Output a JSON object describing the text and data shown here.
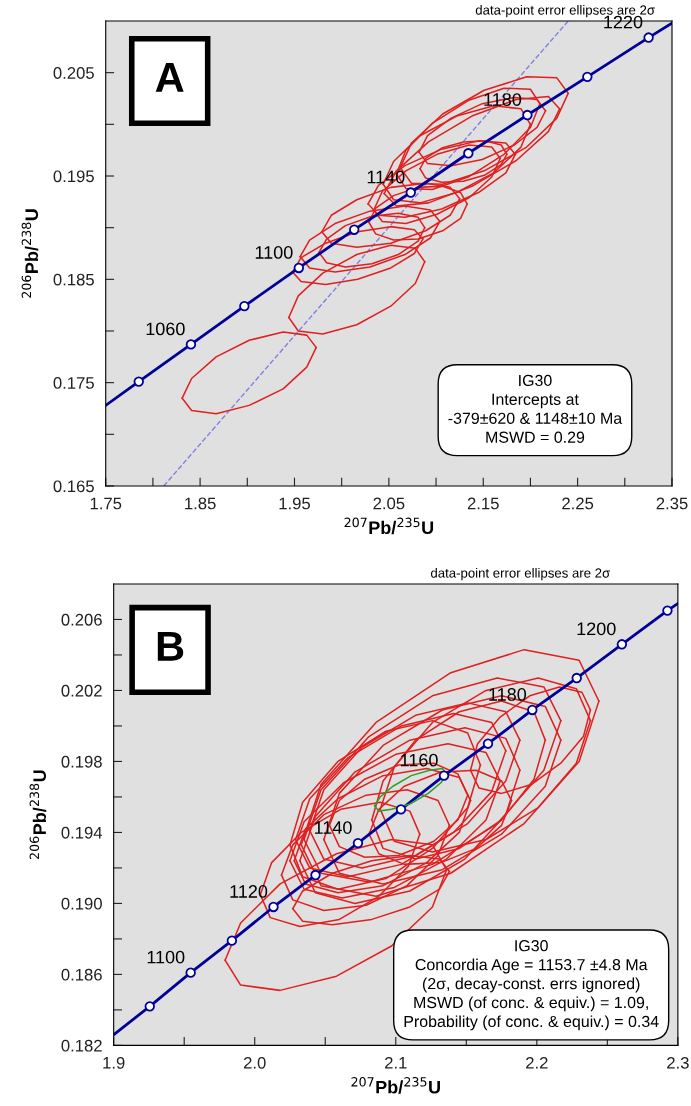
{
  "chart_data": [
    {
      "type": "line",
      "xlabel": "$^{207}$Pb/$^{235}$U",
      "ylabel": "$^{206}$Pb/$^{238}$U",
      "xlim": [
        1.75,
        2.35
      ],
      "ylim": [
        0.165,
        0.21
      ],
      "xticks": [
        1.75,
        {
          "value": 1.8,
          "label": null
        },
        1.85,
        {
          "value": 1.9,
          "label": null
        },
        1.95,
        {
          "value": 2.0,
          "label": null
        },
        2.05,
        {
          "value": 2.1,
          "label": null
        },
        2.15,
        {
          "value": 2.2,
          "label": null
        },
        2.25,
        {
          "value": 2.3,
          "label": null
        },
        2.35
      ],
      "yticks": [
        0.165,
        {
          "value": 0.17,
          "label": null
        },
        0.175,
        {
          "value": 0.18,
          "label": null
        },
        0.185,
        {
          "value": 0.19,
          "label": null
        },
        0.195,
        {
          "value": 0.2,
          "label": null
        },
        0.205
      ],
      "annotations": [
        "A",
        "data-point error ellipses are 2σ",
        "IG30\nIntercepts at\n-379±620 & 1148±10 Ma\nMSWD = 0.29",
        {
          "text": "1060",
          "x": 1.8403,
          "y": 0.1787
        },
        {
          "text": "1100",
          "x": 1.9546,
          "y": 0.1861
        },
        {
          "text": "1140",
          "x": 2.0732,
          "y": 0.1934
        },
        {
          "text": "1180",
          "x": 2.1968,
          "y": 0.2009
        },
        {
          "text": "1220",
          "x": 2.3252,
          "y": 0.2084
        }
      ],
      "series": [
        {
          "type": "line",
          "color": "#8080e0",
          "line_style": "dashed",
          "x": [
            1.8115,
            2.24
          ],
          "values": [
            0.165,
            0.21
          ]
        },
        {
          "type": "line",
          "color": "#e02020",
          "x": [
            1.831,
            1.841,
            1.867,
            1.902,
            1.938,
            1.963,
            1.973
          ],
          "values": [
            0.1735,
            0.1754,
            0.1775,
            0.1791,
            0.1799,
            0.1796,
            0.1784
          ]
        },
        {
          "type": "line",
          "color": "#e02020",
          "x": [
            1.831,
            1.841,
            1.867,
            1.902,
            1.938,
            1.963,
            1.973
          ],
          "values": [
            0.1735,
            0.1723,
            0.172,
            0.1728,
            0.1744,
            0.1765,
            0.1784
          ]
        },
        {
          "type": "line",
          "color": "#e02020",
          "x": [
            1.944,
            1.954,
            1.98,
            2.016,
            2.052,
            2.078,
            2.088
          ],
          "values": [
            0.1813,
            0.1834,
            0.1856,
            0.1874,
            0.1883,
            0.188,
            0.1867
          ]
        },
        {
          "type": "line",
          "color": "#e02020",
          "x": [
            1.944,
            1.954,
            1.98,
            2.016,
            2.052,
            2.078,
            2.088
          ],
          "values": [
            0.1813,
            0.18,
            0.1797,
            0.1806,
            0.1824,
            0.1846,
            0.1867
          ]
        },
        {
          "type": "line",
          "color": "#e02020",
          "x": [
            1.948,
            1.957,
            1.983,
            2.017,
            2.052,
            2.077,
            2.086
          ],
          "values": [
            0.1857,
            0.1871,
            0.1885,
            0.1896,
            0.1901,
            0.1898,
            0.1889
          ]
        },
        {
          "type": "line",
          "color": "#e02020",
          "x": [
            1.948,
            1.957,
            1.983,
            2.017,
            2.052,
            2.077,
            2.086
          ],
          "values": [
            0.1857,
            0.1848,
            0.1845,
            0.185,
            0.1861,
            0.1875,
            0.1889
          ]
        },
        {
          "type": "line",
          "color": "#e02020",
          "x": [
            1.976,
            1.984,
            2.004,
            2.032,
            2.06,
            2.081,
            2.088
          ],
          "values": [
            0.1876,
            0.1889,
            0.1902,
            0.1911,
            0.1914,
            0.191,
            0.19
          ]
        },
        {
          "type": "line",
          "color": "#e02020",
          "x": [
            1.976,
            1.984,
            2.004,
            2.032,
            2.06,
            2.081,
            2.088
          ],
          "values": [
            0.1876,
            0.1866,
            0.1862,
            0.1865,
            0.1874,
            0.1887,
            0.19
          ]
        },
        {
          "type": "line",
          "color": "#e02020",
          "x": [
            1.956,
            1.966,
            1.993,
            2.03,
            2.067,
            2.094,
            2.104
          ],
          "values": [
            0.1872,
            0.1888,
            0.1904,
            0.1916,
            0.1921,
            0.1917,
            0.1906
          ]
        },
        {
          "type": "line",
          "color": "#e02020",
          "x": [
            1.956,
            1.966,
            1.993,
            2.03,
            2.067,
            2.094,
            2.104
          ],
          "values": [
            0.1872,
            0.1861,
            0.1857,
            0.1862,
            0.1874,
            0.189,
            0.1906
          ]
        },
        {
          "type": "line",
          "color": "#e02020",
          "x": [
            1.979,
            1.989,
            2.016,
            2.052,
            2.089,
            2.115,
            2.125
          ],
          "values": [
            0.1896,
            0.1912,
            0.1927,
            0.1939,
            0.1943,
            0.1939,
            0.1928
          ]
        },
        {
          "type": "line",
          "color": "#e02020",
          "x": [
            1.979,
            1.989,
            2.016,
            2.052,
            2.089,
            2.115,
            2.125
          ],
          "values": [
            0.1896,
            0.1885,
            0.1881,
            0.1885,
            0.1897,
            0.1912,
            0.1928
          ]
        },
        {
          "type": "line",
          "color": "#e02020",
          "x": [
            2.029,
            2.036,
            2.055,
            2.081,
            2.107,
            2.126,
            2.133
          ],
          "values": [
            0.1905,
            0.1919,
            0.1931,
            0.1939,
            0.194,
            0.1934,
            0.1923
          ]
        },
        {
          "type": "line",
          "color": "#e02020",
          "x": [
            2.029,
            2.036,
            2.055,
            2.081,
            2.107,
            2.126,
            2.133
          ],
          "values": [
            0.1905,
            0.1894,
            0.1888,
            0.1889,
            0.1897,
            0.1909,
            0.1923
          ]
        },
        {
          "type": "line",
          "color": "#e02020",
          "x": [
            2.028,
            2.039,
            2.067,
            2.106,
            2.145,
            2.174,
            2.184
          ],
          "values": [
            0.1923,
            0.1941,
            0.196,
            0.1976,
            0.1984,
            0.1982,
            0.1971
          ]
        },
        {
          "type": "line",
          "color": "#e02020",
          "x": [
            2.028,
            2.039,
            2.067,
            2.106,
            2.145,
            2.174,
            2.184
          ],
          "values": [
            0.1923,
            0.1912,
            0.191,
            0.1918,
            0.1934,
            0.1953,
            0.1971
          ]
        },
        {
          "type": "line",
          "color": "#e02020",
          "x": [
            2.044,
            2.055,
            2.083,
            2.122,
            2.161,
            2.19,
            2.2
          ],
          "values": [
            0.1942,
            0.1964,
            0.1989,
            0.2008,
            0.2018,
            0.2015,
            0.2
          ]
        },
        {
          "type": "line",
          "color": "#e02020",
          "x": [
            2.044,
            2.055,
            2.083,
            2.122,
            2.161,
            2.19,
            2.2
          ],
          "values": [
            0.1942,
            0.1927,
            0.1924,
            0.1934,
            0.1953,
            0.1978,
            0.2
          ]
        },
        {
          "type": "line",
          "color": "#e02020",
          "x": [
            2.062,
            2.074,
            2.107,
            2.151,
            2.196,
            2.228,
            2.24
          ],
          "values": [
            0.1958,
            0.1982,
            0.201,
            0.2033,
            0.2046,
            0.2045,
            0.203
          ]
        },
        {
          "type": "line",
          "color": "#e02020",
          "x": [
            2.062,
            2.074,
            2.107,
            2.151,
            2.196,
            2.228,
            2.24
          ],
          "values": [
            0.1958,
            0.1943,
            0.1942,
            0.1955,
            0.1978,
            0.2006,
            0.203
          ]
        },
        {
          "type": "line",
          "color": "#e02020",
          "x": [
            2.082,
            2.091,
            2.116,
            2.149,
            2.183,
            2.207,
            2.216
          ],
          "values": [
            0.1973,
            0.1989,
            0.2006,
            0.202,
            0.2026,
            0.2024,
            0.2013
          ]
        },
        {
          "type": "line",
          "color": "#e02020",
          "x": [
            2.082,
            2.091,
            2.116,
            2.149,
            2.183,
            2.207,
            2.216
          ],
          "values": [
            0.1973,
            0.1962,
            0.196,
            0.1966,
            0.198,
            0.1997,
            0.2013
          ]
        },
        {
          "type": "line",
          "color": "#e02020",
          "x": [
            2.083,
            2.089,
            2.106,
            2.129,
            2.152,
            2.169,
            2.175
          ],
          "values": [
            0.1957,
            0.1967,
            0.1977,
            0.1983,
            0.1984,
            0.198,
            0.1971
          ]
        },
        {
          "type": "line",
          "color": "#e02020",
          "x": [
            2.083,
            2.089,
            2.106,
            2.129,
            2.152,
            2.169,
            2.175
          ],
          "values": [
            0.1957,
            0.1948,
            0.1944,
            0.1945,
            0.1951,
            0.1961,
            0.1971
          ]
        },
        {
          "type": "line",
          "color": "#e02020",
          "x": [
            2.045,
            2.058,
            2.092,
            2.138,
            2.185,
            2.219,
            2.231
          ],
          "values": [
            0.1933,
            0.1955,
            0.1983,
            0.2008,
            0.2024,
            0.2027,
            0.2015
          ]
        },
        {
          "type": "line",
          "color": "#e02020",
          "x": [
            2.045,
            2.058,
            2.092,
            2.138,
            2.185,
            2.219,
            2.231
          ],
          "values": [
            0.1933,
            0.1921,
            0.1924,
            0.194,
            0.1965,
            0.1993,
            0.2015
          ]
        },
        {
          "type": "line",
          "color": "#e02020",
          "x": [
            2.034,
            2.043,
            2.068,
            2.101,
            2.135,
            2.159,
            2.168
          ],
          "values": [
            0.1917,
            0.1935,
            0.1955,
            0.1971,
            0.198,
            0.1978,
            0.1967
          ]
        },
        {
          "type": "line",
          "color": "#e02020",
          "x": [
            2.034,
            2.043,
            2.068,
            2.101,
            2.135,
            2.159,
            2.168
          ],
          "values": [
            0.1917,
            0.1906,
            0.1904,
            0.1913,
            0.1929,
            0.1949,
            0.1967
          ]
        },
        {
          "type": "line",
          "color": "#e02020",
          "x": [
            2.058,
            2.068,
            2.096,
            2.134,
            2.172,
            2.2,
            2.21
          ],
          "values": [
            0.1952,
            0.1975,
            0.2001,
            0.2023,
            0.2035,
            0.2034,
            0.202
          ]
        },
        {
          "type": "line",
          "color": "#e02020",
          "x": [
            2.058,
            2.068,
            2.096,
            2.134,
            2.172,
            2.2,
            2.21
          ],
          "values": [
            0.1952,
            0.1938,
            0.1937,
            0.1949,
            0.1971,
            0.1997,
            0.202
          ]
        },
        {
          "type": "line",
          "color": "#00009a",
          "x": [
            1.75,
            1.785,
            1.8403,
            1.8969,
            1.9546,
            2.0133,
            2.0732,
            2.1342,
            2.1968,
            2.2603,
            2.3252,
            2.35
          ],
          "values": [
            0.1728,
            0.1751,
            0.1787,
            0.1824,
            0.1861,
            0.1898,
            0.1934,
            0.1972,
            0.2009,
            0.2046,
            0.2084,
            0.2098
          ]
        },
        {
          "type": "scatter",
          "color": "#00009a",
          "marker": "circle",
          "x": [
            1.785,
            1.8403,
            1.8969,
            1.9546,
            2.0133,
            2.0732,
            2.1342,
            2.1968,
            2.2603,
            2.3252
          ],
          "values": [
            0.1751,
            0.1787,
            0.1824,
            0.1861,
            0.1898,
            0.1934,
            0.1972,
            0.2009,
            0.2046,
            0.2084
          ]
        }
      ]
    },
    {
      "type": "line",
      "xlabel": "$^{207}$Pb/$^{235}$U",
      "ylabel": "$^{206}$Pb/$^{238}$U",
      "xlim": [
        1.9,
        2.3
      ],
      "ylim": [
        0.182,
        0.208
      ],
      "xticks": [
        1.9,
        {
          "value": 1.95,
          "label": null
        },
        {
          "value": 2.0,
          "label": "2.0"
        },
        {
          "value": 2.05,
          "label": null
        },
        2.1,
        {
          "value": 2.15,
          "label": null
        },
        2.2,
        {
          "value": 2.25,
          "label": null
        },
        2.3
      ],
      "yticks": [
        0.182,
        {
          "value": 0.184,
          "label": null
        },
        0.186,
        {
          "value": 0.188,
          "label": null
        },
        {
          "value": 0.19,
          "label": "0.190"
        },
        {
          "value": 0.192,
          "label": null
        },
        0.194,
        {
          "value": 0.196,
          "label": null
        },
        0.198,
        {
          "value": 0.2,
          "label": null
        },
        0.202,
        {
          "value": 0.204,
          "label": null
        },
        0.206
      ],
      "annotations": [
        "B",
        "data-point error ellipses are 2σ",
        "IG30\nConcordia Age = 1153.7 ±4.8 Ma\n(2σ, decay-const. errs ignored)\nMSWD (of conc. & equiv.) = 1.09,\nProbability (of conc. & equiv.) = 0.34",
        {
          "text": "1100",
          "x": 1.9546,
          "y": 0.1861
        },
        {
          "text": "1120",
          "x": 2.0133,
          "y": 0.1898
        },
        {
          "text": "1140",
          "x": 2.0732,
          "y": 0.1934
        },
        {
          "text": "1160",
          "x": 2.1342,
          "y": 0.1972
        },
        {
          "text": "1180",
          "x": 2.1968,
          "y": 0.2009
        },
        {
          "text": "1200",
          "x": 2.2603,
          "y": 0.2046
        }
      ],
      "series": [
        {
          "type": "line",
          "color": "#e02020",
          "x": [
            1.979,
            1.99,
            2.018,
            2.058,
            2.097,
            2.126,
            2.136
          ],
          "values": [
            0.1868,
            0.1889,
            0.1911,
            0.1928,
            0.1936,
            0.1933,
            0.1919
          ]
        },
        {
          "type": "line",
          "color": "#e02020",
          "x": [
            1.979,
            1.99,
            2.018,
            2.058,
            2.097,
            2.126,
            2.136
          ],
          "values": [
            0.1868,
            0.1854,
            0.1851,
            0.1859,
            0.1876,
            0.1898,
            0.1919
          ]
        },
        {
          "type": "line",
          "color": "#e02020",
          "x": [
            2.027,
            2.034,
            2.055,
            2.083,
            2.11,
            2.131,
            2.138
          ],
          "values": [
            0.1897,
            0.1907,
            0.1917,
            0.1924,
            0.1927,
            0.1925,
            0.1918
          ]
        },
        {
          "type": "line",
          "color": "#e02020",
          "x": [
            2.027,
            2.034,
            2.055,
            2.083,
            2.11,
            2.131,
            2.138
          ],
          "values": [
            0.1897,
            0.189,
            0.1888,
            0.1891,
            0.1898,
            0.1908,
            0.1918
          ]
        },
        {
          "type": "line",
          "color": "#e02020",
          "x": [
            2.033,
            2.047,
            2.086,
            2.139,
            2.191,
            2.23,
            2.244
          ],
          "values": [
            0.1933,
            0.1967,
            0.2002,
            0.203,
            0.2043,
            0.2037,
            0.2014
          ]
        },
        {
          "type": "line",
          "color": "#e02020",
          "x": [
            2.033,
            2.047,
            2.086,
            2.139,
            2.191,
            2.23,
            2.244
          ],
          "values": [
            0.1933,
            0.191,
            0.1904,
            0.1917,
            0.1945,
            0.198,
            0.2014
          ]
        },
        {
          "type": "line",
          "color": "#e02020",
          "x": [
            2.035,
            2.047,
            2.081,
            2.126,
            2.172,
            2.205,
            2.217
          ],
          "values": [
            0.1936,
            0.1964,
            0.1994,
            0.2017,
            0.2027,
            0.2022,
            0.2003
          ]
        },
        {
          "type": "line",
          "color": "#e02020",
          "x": [
            2.035,
            2.047,
            2.081,
            2.126,
            2.172,
            2.205,
            2.217
          ],
          "values": [
            0.1936,
            0.1917,
            0.1912,
            0.1922,
            0.1945,
            0.1975,
            0.2003
          ]
        },
        {
          "type": "line",
          "color": "#e02020",
          "x": [
            2.039,
            2.049,
            2.076,
            2.114,
            2.151,
            2.178,
            2.188
          ],
          "values": [
            0.1941,
            0.1964,
            0.1988,
            0.2006,
            0.2013,
            0.2008,
            0.1992
          ]
        },
        {
          "type": "line",
          "color": "#e02020",
          "x": [
            2.039,
            2.049,
            2.076,
            2.114,
            2.151,
            2.178,
            2.188
          ],
          "values": [
            0.1941,
            0.1925,
            0.192,
            0.1927,
            0.1945,
            0.1969,
            0.1992
          ]
        },
        {
          "type": "line",
          "color": "#e02020",
          "x": [
            2.029,
            2.039,
            2.066,
            2.104,
            2.141,
            2.168,
            2.178
          ],
          "values": [
            0.1936,
            0.1959,
            0.1982,
            0.2,
            0.2007,
            0.2002,
            0.1986
          ]
        },
        {
          "type": "line",
          "color": "#e02020",
          "x": [
            2.029,
            2.039,
            2.066,
            2.104,
            2.141,
            2.168,
            2.178
          ],
          "values": [
            0.1936,
            0.192,
            0.1915,
            0.1922,
            0.194,
            0.1963,
            0.1986
          ]
        },
        {
          "type": "line",
          "color": "#e02020",
          "x": [
            2.025,
            2.034,
            2.059,
            2.093,
            2.126,
            2.151,
            2.16
          ],
          "values": [
            0.1933,
            0.1957,
            0.198,
            0.1997,
            0.2003,
            0.1996,
            0.1978
          ]
        },
        {
          "type": "line",
          "color": "#e02020",
          "x": [
            2.025,
            2.034,
            2.059,
            2.093,
            2.126,
            2.151,
            2.16
          ],
          "values": [
            0.1933,
            0.1915,
            0.1908,
            0.1914,
            0.1931,
            0.1954,
            0.1978
          ]
        },
        {
          "type": "line",
          "color": "#e02020",
          "x": [
            2.053,
            2.06,
            2.078,
            2.102,
            2.127,
            2.144,
            2.151
          ],
          "values": [
            0.1944,
            0.1958,
            0.197,
            0.1978,
            0.1979,
            0.1973,
            0.1961
          ]
        },
        {
          "type": "line",
          "color": "#e02020",
          "x": [
            2.053,
            2.06,
            2.078,
            2.102,
            2.127,
            2.144,
            2.151
          ],
          "values": [
            0.1944,
            0.1932,
            0.1926,
            0.1927,
            0.1935,
            0.1947,
            0.1961
          ]
        },
        {
          "type": "line",
          "color": "#e02020",
          "x": [
            2.081,
            2.088,
            2.106,
            2.132,
            2.157,
            2.175,
            2.182
          ],
          "values": [
            0.1939,
            0.1953,
            0.1966,
            0.1974,
            0.1975,
            0.1969,
            0.1958
          ]
        },
        {
          "type": "line",
          "color": "#e02020",
          "x": [
            2.081,
            2.088,
            2.106,
            2.132,
            2.157,
            2.175,
            2.182
          ],
          "values": [
            0.1939,
            0.1928,
            0.1922,
            0.1923,
            0.1931,
            0.1944,
            0.1958
          ]
        },
        {
          "type": "line",
          "color": "#e02020",
          "x": [
            2.089,
            2.099,
            2.126,
            2.164,
            2.201,
            2.228,
            2.238
          ],
          "values": [
            0.1953,
            0.1977,
            0.2002,
            0.202,
            0.2027,
            0.2021,
            0.2003
          ]
        },
        {
          "type": "line",
          "color": "#e02020",
          "x": [
            2.089,
            2.099,
            2.126,
            2.164,
            2.201,
            2.228,
            2.238
          ],
          "values": [
            0.1953,
            0.1935,
            0.1929,
            0.1936,
            0.1954,
            0.1979,
            0.2003
          ]
        },
        {
          "type": "line",
          "color": "#e02020",
          "x": [
            2.083,
            2.091,
            2.114,
            2.145,
            2.175,
            2.198,
            2.206
          ],
          "values": [
            0.1947,
            0.1969,
            0.1992,
            0.2008,
            0.2014,
            0.2008,
            0.1992
          ]
        },
        {
          "type": "line",
          "color": "#e02020",
          "x": [
            2.083,
            2.091,
            2.114,
            2.145,
            2.175,
            2.198,
            2.206
          ],
          "values": [
            0.1947,
            0.1931,
            0.1925,
            0.1931,
            0.1947,
            0.197,
            0.1992
          ]
        },
        {
          "type": "line",
          "color": "#e02020",
          "x": [
            2.019,
            2.027,
            2.049,
            2.079,
            2.108,
            2.13,
            2.138
          ],
          "values": [
            0.1916,
            0.1933,
            0.195,
            0.1961,
            0.1964,
            0.1958,
            0.1944
          ]
        },
        {
          "type": "line",
          "color": "#e02020",
          "x": [
            2.019,
            2.027,
            2.049,
            2.079,
            2.108,
            2.13,
            2.138
          ],
          "values": [
            0.1916,
            0.1902,
            0.1896,
            0.1899,
            0.191,
            0.1927,
            0.1944
          ]
        },
        {
          "type": "line",
          "color": "#e02020",
          "x": [
            2.028,
            2.036,
            2.059,
            2.091,
            2.122,
            2.145,
            2.153
          ],
          "values": [
            0.1924,
            0.1942,
            0.1959,
            0.1972,
            0.1976,
            0.1971,
            0.1958
          ]
        },
        {
          "type": "line",
          "color": "#e02020",
          "x": [
            2.028,
            2.036,
            2.059,
            2.091,
            2.122,
            2.145,
            2.153
          ],
          "values": [
            0.1924,
            0.1911,
            0.1906,
            0.191,
            0.1923,
            0.194,
            0.1958
          ]
        },
        {
          "type": "line",
          "color": "#e02020",
          "x": [
            2.032,
            2.043,
            2.071,
            2.11,
            2.149,
            2.178,
            2.188
          ],
          "values": [
            0.1924,
            0.1949,
            0.1974,
            0.1992,
            0.1999,
            0.1993,
            0.1975
          ]
        },
        {
          "type": "line",
          "color": "#e02020",
          "x": [
            2.032,
            2.043,
            2.071,
            2.11,
            2.149,
            2.178,
            2.188
          ],
          "values": [
            0.1924,
            0.1906,
            0.19,
            0.1907,
            0.1925,
            0.195,
            0.1975
          ]
        },
        {
          "type": "line",
          "color": "#e02020",
          "x": [
            2.049,
            2.06,
            2.091,
            2.133,
            2.175,
            2.206,
            2.217
          ],
          "values": [
            0.1936,
            0.1962,
            0.1989,
            0.2009,
            0.2017,
            0.2011,
            0.1992
          ]
        },
        {
          "type": "line",
          "color": "#e02020",
          "x": [
            2.049,
            2.06,
            2.091,
            2.133,
            2.175,
            2.206,
            2.217
          ],
          "values": [
            0.1936,
            0.1917,
            0.1911,
            0.1919,
            0.1939,
            0.1966,
            0.1992
          ]
        },
        {
          "type": "line",
          "color": "#e02020",
          "x": [
            2.153,
            2.158,
            2.174,
            2.195,
            2.216,
            2.232,
            2.238
          ],
          "values": [
            0.1975,
            0.199,
            0.2005,
            0.2017,
            0.2022,
            0.2019,
            0.2009
          ]
        },
        {
          "type": "line",
          "color": "#e02020",
          "x": [
            2.153,
            2.159,
            2.175,
            2.196,
            2.217,
            2.233,
            2.238
          ],
          "values": [
            0.1975,
            0.1965,
            0.1962,
            0.1967,
            0.1979,
            0.1994,
            0.2009
          ]
        },
        {
          "type": "line",
          "color": "#e02020",
          "x": [
            2.004,
            2.012,
            2.033,
            2.061,
            2.089,
            2.11,
            2.117
          ],
          "values": [
            0.1905,
            0.1923,
            0.194,
            0.1953,
            0.1957,
            0.1952,
            0.1939
          ]
        },
        {
          "type": "line",
          "color": "#e02020",
          "x": [
            2.004,
            2.011,
            2.032,
            2.06,
            2.088,
            2.109,
            2.117
          ],
          "values": [
            0.1905,
            0.1892,
            0.1887,
            0.1891,
            0.1904,
            0.1921,
            0.1939
          ]
        },
        {
          "type": "line",
          "color": "#e02020",
          "x": [
            2.025,
            2.035,
            2.063,
            2.1,
            2.137,
            2.164,
            2.174
          ],
          "values": [
            0.1924,
            0.1946,
            0.1968,
            0.1984,
            0.199,
            0.1985,
            0.1969
          ]
        },
        {
          "type": "line",
          "color": "#e02020",
          "x": [
            2.025,
            2.035,
            2.062,
            2.099,
            2.136,
            2.164,
            2.174
          ],
          "values": [
            0.1924,
            0.1908,
            0.1903,
            0.1909,
            0.1925,
            0.1947,
            0.1969
          ]
        },
        {
          "type": "line",
          "color": "#00009a",
          "x": [
            1.9,
            1.9256,
            1.9546,
            1.9838,
            2.0133,
            2.0431,
            2.0732,
            2.1037,
            2.1342,
            2.1654,
            2.1968,
            2.2283,
            2.2603,
            2.2926,
            2.3
          ],
          "values": [
            0.1826,
            0.1842,
            0.1861,
            0.1879,
            0.1898,
            0.1916,
            0.1934,
            0.1953,
            0.1972,
            0.199,
            0.2009,
            0.2027,
            0.2046,
            0.2065,
            0.2069
          ]
        },
        {
          "type": "scatter",
          "color": "#00009a",
          "marker": "circle",
          "x": [
            1.9256,
            1.9546,
            1.9838,
            2.0133,
            2.0431,
            2.0732,
            2.1037,
            2.1342,
            2.1654,
            2.1968,
            2.2283,
            2.2603,
            2.2926
          ],
          "values": [
            0.1842,
            0.1861,
            0.1879,
            0.1898,
            0.1916,
            0.1934,
            0.1953,
            0.1972,
            0.199,
            0.2009,
            0.2027,
            0.2046,
            0.2065
          ]
        },
        {
          "type": "line",
          "color": "#2ca02c",
          "x": [
            2.085,
            2.089,
            2.098,
            2.111,
            2.124,
            2.133,
            2.136
          ],
          "values": [
            0.1955,
            0.196,
            0.1966,
            0.1972,
            0.1975,
            0.1976,
            0.1973
          ]
        },
        {
          "type": "line",
          "color": "#2ca02c",
          "x": [
            2.085,
            2.088,
            2.097,
            2.11,
            2.123,
            2.132,
            2.136
          ],
          "values": [
            0.1955,
            0.1952,
            0.1953,
            0.1956,
            0.1962,
            0.1968,
            0.1973
          ]
        }
      ]
    }
  ]
}
